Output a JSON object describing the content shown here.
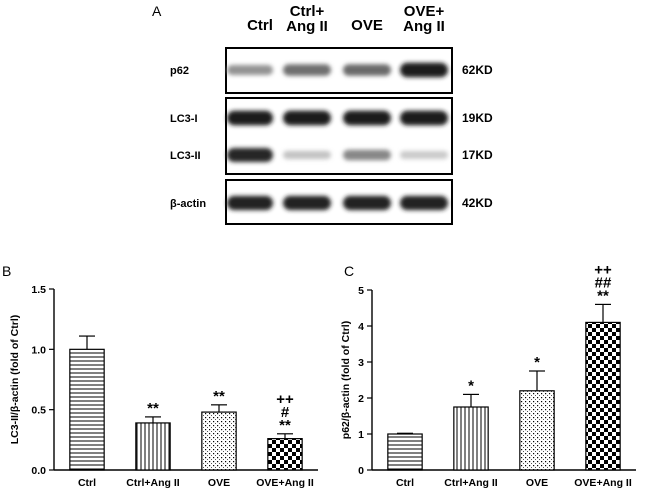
{
  "blot": {
    "panel_letter": "A",
    "lanes": [
      [
        "Ctrl"
      ],
      [
        "Ctrl+",
        "Ang II"
      ],
      [
        "OVE"
      ],
      [
        "OVE+",
        "Ang II"
      ]
    ],
    "rows": [
      {
        "label": "p62",
        "kd": "62KD",
        "intensity": [
          0.45,
          0.6,
          0.62,
          0.95
        ]
      },
      {
        "label": "LC3-I",
        "kd": "19KD",
        "intensity": [
          0.95,
          0.95,
          0.95,
          0.95
        ]
      },
      {
        "label": "LC3-II",
        "kd": "17KD",
        "intensity": [
          0.9,
          0.25,
          0.5,
          0.22
        ]
      },
      {
        "label": "β-actin",
        "kd": "42KD",
        "intensity": [
          0.92,
          0.92,
          0.92,
          0.92
        ]
      }
    ]
  },
  "chart_data": [
    {
      "type": "bar",
      "panel_letter": "B",
      "categories": [
        "Ctrl",
        "Ctrl+Ang II",
        "OVE",
        "OVE+Ang II"
      ],
      "values": [
        1.0,
        0.39,
        0.48,
        0.26
      ],
      "errors": [
        0.11,
        0.05,
        0.06,
        0.04
      ],
      "annotations": [
        [],
        [
          "**"
        ],
        [
          "**"
        ],
        [
          "++",
          "#",
          "**"
        ]
      ],
      "patterns": [
        "hlines",
        "vlines",
        "dots",
        "checker"
      ],
      "ylabel": "LC3-II/β-actin (fold of Ctrl)",
      "ylim": [
        0,
        1.5
      ],
      "yticks": [
        "0.0",
        "0.5",
        "1.0",
        "1.5"
      ],
      "grid": false
    },
    {
      "type": "bar",
      "panel_letter": "C",
      "categories": [
        "Ctrl",
        "Ctrl+Ang II",
        "OVE",
        "OVE+Ang II"
      ],
      "values": [
        1.0,
        1.75,
        2.2,
        4.1
      ],
      "errors": [
        0.02,
        0.35,
        0.55,
        0.5
      ],
      "annotations": [
        [],
        [
          "*"
        ],
        [
          "*"
        ],
        [
          "++",
          "##",
          "**"
        ]
      ],
      "patterns": [
        "hlines",
        "vlines",
        "dots",
        "checker"
      ],
      "ylabel": "p62/β-actin (fold of Ctrl)",
      "ylim": [
        0,
        5
      ],
      "yticks": [
        "0",
        "1",
        "2",
        "3",
        "4",
        "5"
      ],
      "grid": false
    }
  ]
}
